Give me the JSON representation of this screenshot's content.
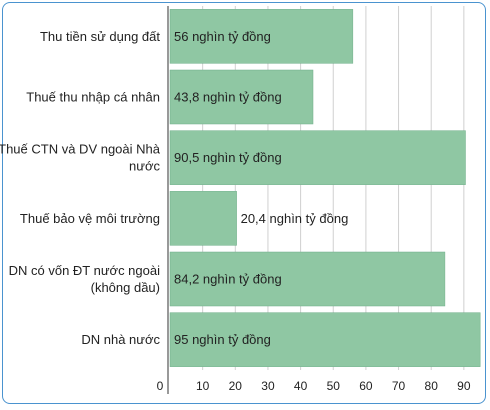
{
  "chart_data": {
    "type": "bar",
    "orientation": "horizontal",
    "categories": [
      "Thu tiền sử dụng đất",
      "Thuế thu nhập cá nhân",
      "Thuế CTN và DV ngoài Nhà nước",
      "Thuế bảo vệ môi trường",
      "DN có vốn ĐT nước ngoài (không dầu)",
      "DN nhà nước"
    ],
    "category_lines": [
      [
        "Thu tiền sử dụng đất"
      ],
      [
        "Thuế thu nhập cá nhân"
      ],
      [
        "Thuế CTN và DV ngoài Nhà",
        "nước"
      ],
      [
        "Thuế bảo vệ môi trường"
      ],
      [
        "DN có vốn ĐT nước ngoài",
        "(không dầu)"
      ],
      [
        "DN nhà nước"
      ]
    ],
    "values": [
      56,
      43.8,
      90.5,
      20.4,
      84.2,
      95
    ],
    "data_labels": [
      "56 nghìn tỷ đồng",
      "43,8 nghìn tỷ đồng",
      "90,5 nghìn tỷ đồng",
      "20,4 nghìn tỷ đồng",
      "84,2 nghìn tỷ đồng",
      "95 nghìn tỷ đồng"
    ],
    "xticks": [
      0,
      10,
      20,
      30,
      40,
      50,
      60,
      70,
      80,
      90
    ],
    "xlim": [
      0,
      95
    ],
    "title": "",
    "xlabel": "",
    "ylabel": "",
    "grid": true,
    "legend": false,
    "bar_color": "#8fc7a3",
    "bar_border_color": "#6fae89",
    "grid_color": "#d0d0d0",
    "frame_color": "#4a93cf"
  }
}
